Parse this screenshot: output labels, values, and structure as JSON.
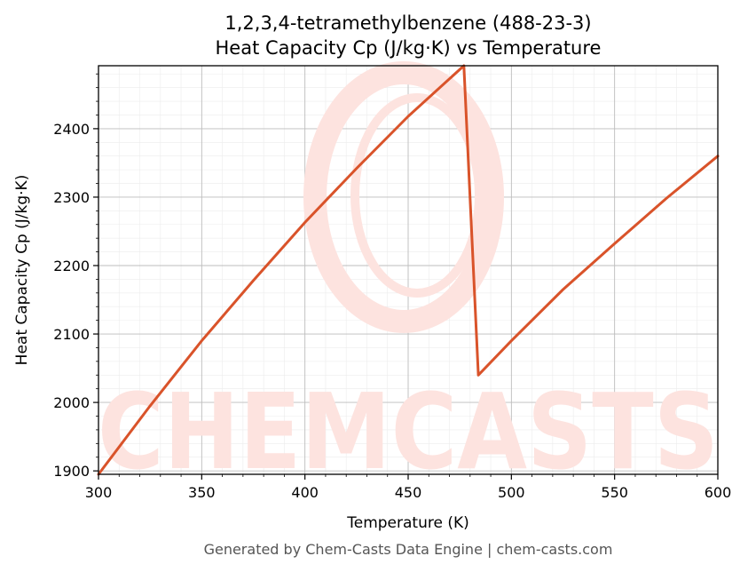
{
  "chart_data": {
    "type": "line",
    "title": "1,2,3,4-tetramethylbenzene (488-23-3)",
    "subtitle": "Heat Capacity Cp (J/kg·K) vs Temperature",
    "xlabel": "Temperature (K)",
    "ylabel": "Heat Capacity Cp (J/kg·K)",
    "xlim": [
      300,
      600
    ],
    "ylim": [
      1895,
      2492
    ],
    "x_ticks": [
      300,
      350,
      400,
      450,
      500,
      550,
      600
    ],
    "y_ticks": [
      1900,
      2000,
      2100,
      2200,
      2300,
      2400
    ],
    "grid": true,
    "line_color": "#d9532a",
    "series": [
      {
        "x": [
          300,
          325,
          350,
          375,
          400,
          425,
          450,
          477,
          484,
          500,
          525,
          550,
          575,
          600
        ],
        "values": [
          1895,
          1995,
          2090,
          2178,
          2263,
          2342,
          2418,
          2492,
          2040,
          2090,
          2165,
          2232,
          2298,
          2360
        ]
      }
    ]
  },
  "watermark": {
    "text": "CHEMCASTS",
    "color": "#fde3df"
  },
  "footer": "Generated by Chem-Casts Data Engine | chem-casts.com"
}
